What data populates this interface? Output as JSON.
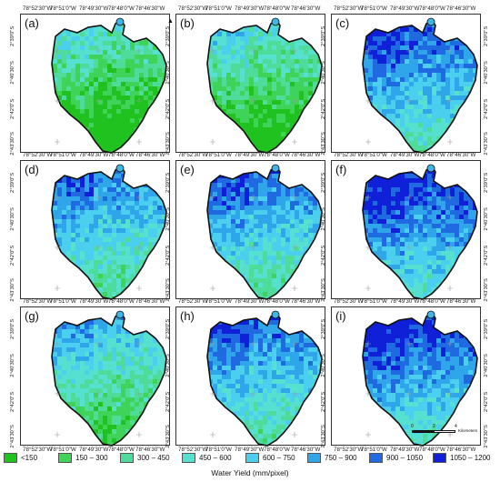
{
  "panels": [
    "(a)",
    "(b)",
    "(c)",
    "(d)",
    "(e)",
    "(f)",
    "(g)",
    "(h)",
    "(i)"
  ],
  "panel_wetness": [
    0.1,
    0.15,
    0.55,
    0.45,
    0.48,
    0.62,
    0.3,
    0.5,
    0.6
  ],
  "x_axis_labels": [
    "78°52'30\"W",
    "78°51'0\"W",
    "78°49'30\"W",
    "78°48'0\"W",
    "78°46'30\"W"
  ],
  "y_axis_labels": [
    "2°39'0\"S",
    "2°40'30\"S",
    "2°42'0\"S",
    "2°43'30\"S"
  ],
  "scale_bar": {
    "ticks": [
      "0",
      "2",
      "4"
    ],
    "unit": "Kilometers"
  },
  "north_arrow": "north-arrow-icon",
  "legend": {
    "title": "Water Yield (mm/pixel)",
    "classes": [
      {
        "label": "<150",
        "color": "#1fc21f"
      },
      {
        "label": "150 – 300",
        "color": "#3fd35a"
      },
      {
        "label": "300 – 450",
        "color": "#4fdc9a"
      },
      {
        "label": "450 – 600",
        "color": "#56e0cf"
      },
      {
        "label": "600 – 750",
        "color": "#4ad0ee"
      },
      {
        "label": "750 – 900",
        "color": "#2fa6ea"
      },
      {
        "label": "900 – 1050",
        "color": "#1f6ae0"
      },
      {
        "label": "1050 – 1200",
        "color": "#1020d8"
      }
    ]
  }
}
